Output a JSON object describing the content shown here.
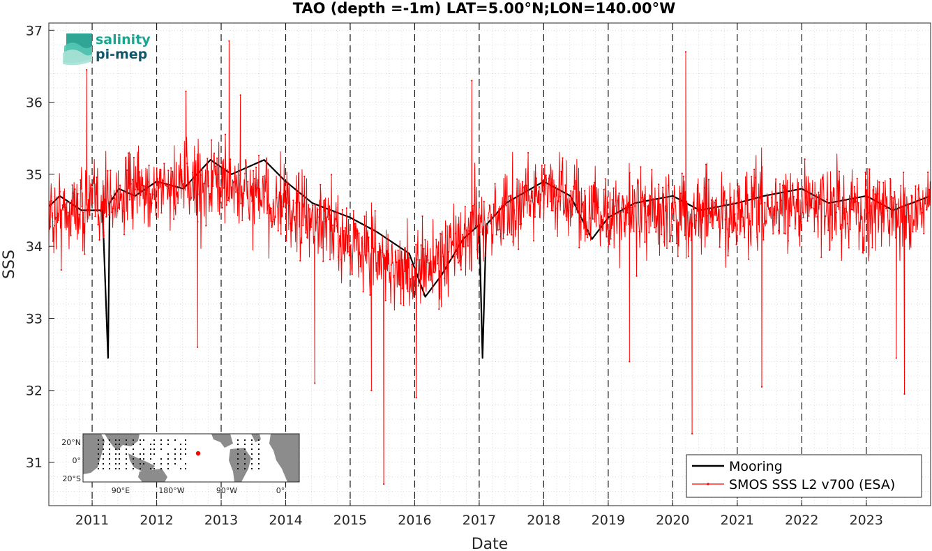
{
  "chart_data": {
    "type": "line",
    "title": "TAO (depth =-1m) LAT=5.00°N;LON=140.00°W",
    "xlabel": "Date",
    "ylabel": "SSS",
    "xlim": [
      "2010-05-01",
      "2023-12-31"
    ],
    "ylim": [
      30.4,
      37.1
    ],
    "x_ticks": [
      "2011",
      "2012",
      "2013",
      "2014",
      "2015",
      "2016",
      "2017",
      "2018",
      "2019",
      "2020",
      "2021",
      "2022",
      "2023"
    ],
    "y_ticks": [
      31,
      32,
      33,
      34,
      35,
      36,
      37
    ],
    "grid": "minor dotted; dashed vertical lines at each year",
    "legend_position": "bottom-right",
    "series": [
      {
        "name": "Mooring",
        "color": "#000000",
        "style": "solid",
        "points": [
          [
            "2010-05-01",
            34.55
          ],
          [
            "2010-07-01",
            34.7
          ],
          [
            "2010-09-01",
            34.6
          ],
          [
            "2010-11-01",
            34.5
          ],
          [
            "2011-01-01",
            34.5
          ],
          [
            "2011-03-01",
            34.5
          ],
          [
            "2011-04-01",
            32.45
          ],
          [
            "2011-04-10",
            34.6
          ],
          [
            "2011-06-01",
            34.8
          ],
          [
            "2011-09-01",
            34.7
          ],
          [
            "2012-01-01",
            34.9
          ],
          [
            "2012-06-01",
            34.8
          ],
          [
            "2012-11-01",
            35.2
          ],
          [
            "2013-03-01",
            35.0
          ],
          [
            "2013-09-01",
            35.2
          ],
          [
            "2014-01-01",
            34.9
          ],
          [
            "2014-06-01",
            34.6
          ],
          [
            "2015-01-01",
            34.4
          ],
          [
            "2015-06-01",
            34.2
          ],
          [
            "2015-12-01",
            33.9
          ],
          [
            "2016-03-01",
            33.3
          ],
          [
            "2016-06-01",
            33.6
          ],
          [
            "2016-10-01",
            34.1
          ],
          [
            "2017-01-01",
            34.3
          ],
          [
            "2017-01-20",
            32.45
          ],
          [
            "2017-02-10",
            34.3
          ],
          [
            "2017-06-01",
            34.6
          ],
          [
            "2018-01-01",
            34.9
          ],
          [
            "2018-06-01",
            34.7
          ],
          [
            "2018-10-01",
            34.1
          ],
          [
            "2019-01-01",
            34.4
          ],
          [
            "2019-06-01",
            34.6
          ],
          [
            "2020-01-01",
            34.7
          ],
          [
            "2020-06-01",
            34.5
          ],
          [
            "2021-01-01",
            34.6
          ],
          [
            "2021-06-01",
            34.7
          ],
          [
            "2022-01-01",
            34.8
          ],
          [
            "2022-06-01",
            34.6
          ],
          [
            "2023-01-01",
            34.7
          ],
          [
            "2023-06-01",
            34.5
          ],
          [
            "2023-12-31",
            34.7
          ]
        ]
      },
      {
        "name": "SMOS SSS L2 v700 (ESA)",
        "color": "#ff0000",
        "style": "solid with dot markers",
        "mean_by_year": [
          [
            2010.33,
            34.4
          ],
          [
            2011,
            34.6
          ],
          [
            2012,
            34.8
          ],
          [
            2013,
            34.9
          ],
          [
            2014,
            34.5
          ],
          [
            2015,
            34.1
          ],
          [
            2015.5,
            33.8
          ],
          [
            2016,
            33.6
          ],
          [
            2016.5,
            33.9
          ],
          [
            2017,
            34.3
          ],
          [
            2018,
            34.8
          ],
          [
            2019,
            34.4
          ],
          [
            2020,
            34.5
          ],
          [
            2021,
            34.4
          ],
          [
            2022,
            34.6
          ],
          [
            2023,
            34.5
          ],
          [
            2024,
            34.5
          ]
        ],
        "spread": 0.55,
        "notable_values": [
          [
            "2010-12-01",
            36.45
          ],
          [
            "2013-02-15",
            36.85
          ],
          [
            "2020-03-15",
            36.7
          ],
          [
            "2020-04-20",
            31.4
          ],
          [
            "2015-07-10",
            30.7
          ],
          [
            "2015-05-01",
            32.0
          ],
          [
            "2016-01-10",
            31.9
          ],
          [
            "2014-06-15",
            32.1
          ],
          [
            "2012-08-20",
            32.6
          ],
          [
            "2019-05-01",
            32.4
          ],
          [
            "2021-05-20",
            32.05
          ],
          [
            "2023-08-05",
            31.95
          ],
          [
            "2023-06-20",
            32.45
          ],
          [
            "2012-06-15",
            36.15
          ],
          [
            "2013-04-20",
            36.1
          ],
          [
            "2016-11-20",
            36.3
          ]
        ]
      }
    ]
  },
  "logo": {
    "line1": "salinity",
    "line2": "pi-mep"
  },
  "inset_map": {
    "x_labels": [
      "90°E",
      "180°W",
      "90°W",
      "0°"
    ],
    "y_labels": [
      "20°N",
      "0°",
      "20°S"
    ],
    "marker_color": "#ff0000"
  }
}
